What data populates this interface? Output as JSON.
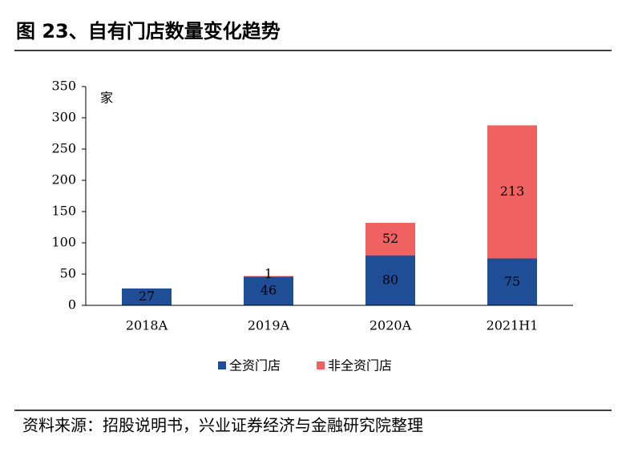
{
  "chart_data": {
    "type": "stacked-bar",
    "title": "图 23、自有门店数量变化趋势",
    "y_unit": "家",
    "categories": [
      "2018A",
      "2019A",
      "2020A",
      "2021H1"
    ],
    "series": [
      {
        "name": "全资门店",
        "color": "#1f4e96",
        "values": [
          27,
          46,
          80,
          75
        ]
      },
      {
        "name": "非全资门店",
        "color": "#f06262",
        "values": [
          null,
          1,
          52,
          213
        ]
      }
    ],
    "ylim": [
      0,
      350
    ],
    "yticks": [
      0,
      50,
      100,
      150,
      200,
      250,
      300,
      350
    ],
    "source": "资料来源：招股说明书，兴业证券经济与金融研究院整理"
  }
}
